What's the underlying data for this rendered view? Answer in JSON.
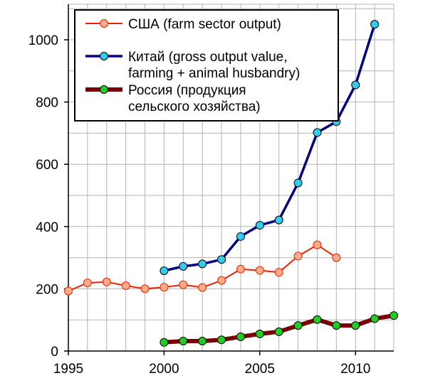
{
  "chart_data": {
    "type": "line",
    "title": "",
    "xlabel": "",
    "ylabel": "",
    "xlim": [
      1995,
      2012
    ],
    "ylim": [
      0,
      1000
    ],
    "x_ticks": [
      1995,
      2000,
      2005,
      2010
    ],
    "y_ticks": [
      0,
      200,
      400,
      600,
      800,
      1000
    ],
    "grid": true,
    "legend_position": "top",
    "series": [
      {
        "name": "США (farm sector output)",
        "line_color": "#ee2200",
        "marker_color": "#ffaa88",
        "points": [
          [
            1995,
            193
          ],
          [
            1996,
            219
          ],
          [
            1997,
            222
          ],
          [
            1998,
            210
          ],
          [
            1999,
            200
          ],
          [
            2000,
            205
          ],
          [
            2001,
            213
          ],
          [
            2002,
            204
          ],
          [
            2003,
            227
          ],
          [
            2004,
            263
          ],
          [
            2005,
            259
          ],
          [
            2006,
            253
          ],
          [
            2007,
            305
          ],
          [
            2008,
            341
          ],
          [
            2009,
            300
          ]
        ]
      },
      {
        "name_lines": [
          "Китай (gross output value,",
          "farming + animal husbandry)"
        ],
        "line_color": "#000080",
        "marker_color": "#33ccee",
        "points": [
          [
            2000,
            258
          ],
          [
            2001,
            272
          ],
          [
            2002,
            280
          ],
          [
            2003,
            294
          ],
          [
            2004,
            368
          ],
          [
            2005,
            404
          ],
          [
            2006,
            421
          ],
          [
            2007,
            540
          ],
          [
            2008,
            702
          ],
          [
            2009,
            737
          ],
          [
            2010,
            855
          ],
          [
            2011,
            1050
          ]
        ]
      },
      {
        "name_lines": [
          "Россия (продукция",
          "сельского хозяйства)"
        ],
        "line_color": "#7a0000",
        "marker_color": "#22cc22",
        "points": [
          [
            2000,
            28
          ],
          [
            2001,
            32
          ],
          [
            2002,
            32
          ],
          [
            2003,
            36
          ],
          [
            2004,
            46
          ],
          [
            2005,
            55
          ],
          [
            2006,
            62
          ],
          [
            2007,
            82
          ],
          [
            2008,
            101
          ],
          [
            2009,
            82
          ],
          [
            2010,
            82
          ],
          [
            2011,
            104
          ],
          [
            2012,
            114
          ]
        ]
      }
    ]
  }
}
